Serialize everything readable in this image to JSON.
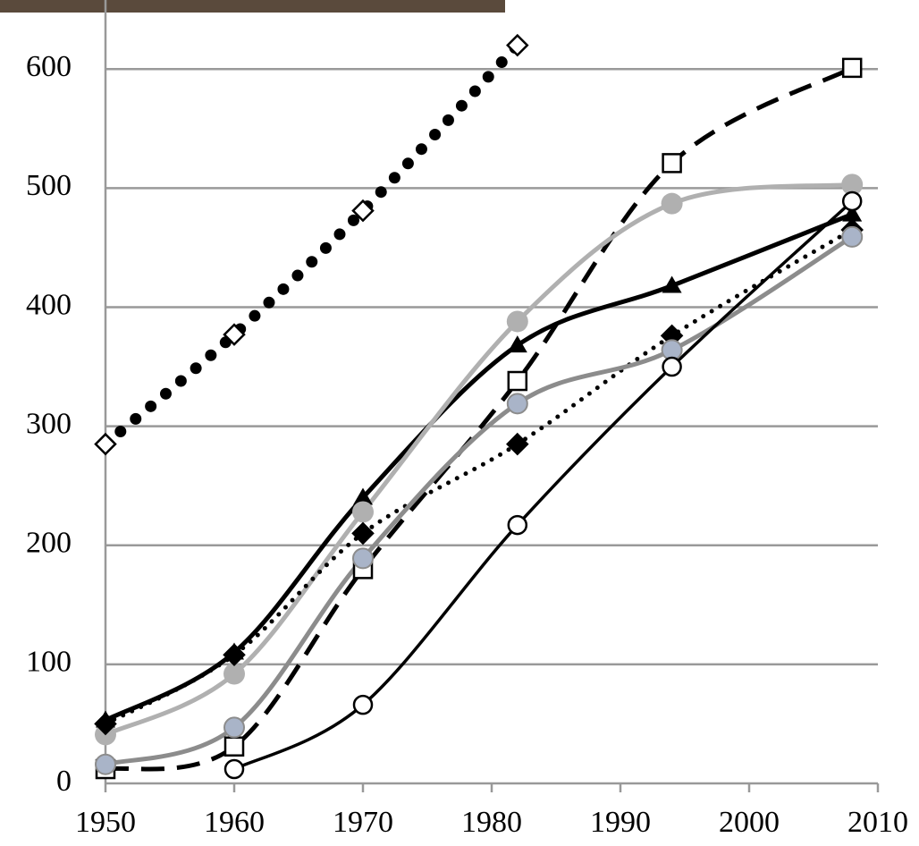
{
  "chart_data": {
    "type": "line",
    "x": [
      1950,
      1960,
      1970,
      1982,
      1994,
      2008
    ],
    "xlim": [
      1950,
      2010
    ],
    "xticks": [
      1950,
      1960,
      1970,
      1980,
      1990,
      2000,
      2010
    ],
    "ylim": [
      0,
      658
    ],
    "yticks": [
      0,
      100,
      200,
      300,
      400,
      500,
      600
    ],
    "grid": true,
    "series": [
      {
        "color": "#000000",
        "dash": "dotted",
        "marker": "diamond-open",
        "values": [
          285,
          377,
          481,
          620,
          null,
          null
        ]
      },
      {
        "color": "#000000",
        "dash": "dashed",
        "marker": "square-open",
        "values": [
          12,
          31,
          180,
          338,
          521,
          601
        ]
      },
      {
        "color": "#000000",
        "dash": "solid",
        "marker": "triangle",
        "values": [
          53,
          110,
          240,
          368,
          418,
          478
        ]
      },
      {
        "color": "#b0b0b0",
        "dash": "solid",
        "marker": "circle",
        "values": [
          41,
          92,
          228,
          388,
          487,
          503
        ]
      },
      {
        "color": "#000000",
        "dash": "dotted-small",
        "marker": "diamond",
        "values": [
          50,
          108,
          210,
          285,
          376,
          465
        ]
      },
      {
        "color": "#8c8c8c",
        "dash": "solid",
        "marker": "circle-blue",
        "values": [
          16,
          47,
          189,
          319,
          364,
          459
        ]
      },
      {
        "color": "#000000",
        "dash": "thin",
        "marker": "circle-open",
        "values": [
          null,
          12,
          66,
          217,
          350,
          489
        ]
      }
    ]
  }
}
